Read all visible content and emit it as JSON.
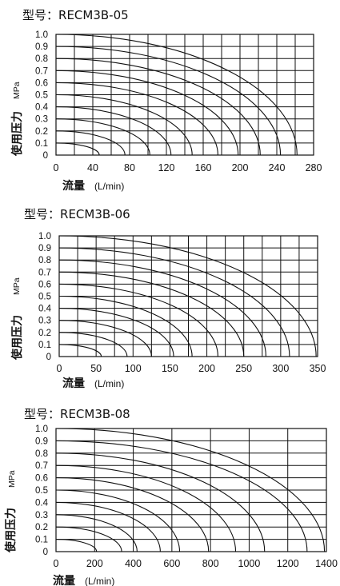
{
  "charts": [
    {
      "title_prefix": "型号",
      "title_sep": "：",
      "model": "RECM3B-05",
      "ylabel": "使用压力",
      "yunit": "MPa",
      "xlabel": "流量",
      "xunit": "(L/min)"
    },
    {
      "title_prefix": "型号",
      "title_sep": "：",
      "model": "RECM3B-06",
      "ylabel": "使用压力",
      "yunit": "MPa",
      "xlabel": "流量",
      "xunit": "(L/min)"
    },
    {
      "title_prefix": "型号",
      "title_sep": "：",
      "model": "RECM3B-08",
      "ylabel": "使用压力",
      "yunit": "MPa",
      "xlabel": "流量",
      "xunit": "(L/min)"
    }
  ],
  "chart_data": [
    {
      "type": "line",
      "title": "型号：RECM3B-05",
      "xlabel": "流量 (L/min)",
      "ylabel": "使用压力 MPa",
      "xlim": [
        0,
        280
      ],
      "ylim": [
        0,
        1.0
      ],
      "x_ticks": [
        0,
        40,
        80,
        120,
        160,
        200,
        240,
        280
      ],
      "x_grid_step": 20,
      "y_ticks": [
        0,
        0.1,
        0.2,
        0.3,
        0.4,
        0.5,
        0.6,
        0.7,
        0.8,
        0.9,
        1.0
      ],
      "y_tick_labels": [
        "0",
        "0.1",
        "0.2",
        "0.3",
        "0.4",
        "0.5",
        "0.6",
        "0.7",
        "0.8",
        "0.9",
        "1.0"
      ],
      "curves_set_pressure": [
        0.1,
        0.2,
        0.3,
        0.4,
        0.5,
        0.6,
        0.7,
        0.8,
        0.9,
        1.0
      ],
      "curves_max_flow": [
        47,
        75,
        102,
        125,
        148,
        176,
        198,
        222,
        244,
        262
      ]
    },
    {
      "type": "line",
      "title": "型号：RECM3B-06",
      "xlabel": "流量 (L/min)",
      "ylabel": "使用压力 MPa",
      "xlim": [
        0,
        350
      ],
      "ylim": [
        0,
        1.0
      ],
      "x_ticks": [
        0,
        50,
        100,
        150,
        200,
        250,
        300,
        350
      ],
      "x_grid_step": 25,
      "y_ticks": [
        0,
        0.1,
        0.2,
        0.3,
        0.4,
        0.5,
        0.6,
        0.7,
        0.8,
        0.9,
        1.0
      ],
      "y_tick_labels": [
        "0",
        "0.1",
        "0.2",
        "0.3",
        "0.4",
        "0.5",
        "0.6",
        "0.7",
        "0.8",
        "0.9",
        "1.0"
      ],
      "curves_set_pressure": [
        0.1,
        0.2,
        0.3,
        0.4,
        0.5,
        0.6,
        0.7,
        0.8,
        0.9,
        1.0
      ],
      "curves_max_flow": [
        57,
        92,
        125,
        155,
        180,
        215,
        250,
        280,
        312,
        348
      ]
    },
    {
      "type": "line",
      "title": "型号：RECM3B-08",
      "xlabel": "流量 (L/min)",
      "ylabel": "使用压力 MPa",
      "xlim": [
        0,
        1400
      ],
      "ylim": [
        0,
        1.0
      ],
      "x_ticks": [
        0,
        200,
        400,
        600,
        800,
        1000,
        1200,
        1400
      ],
      "x_grid_step": 200,
      "y_ticks": [
        0,
        0.1,
        0.2,
        0.3,
        0.4,
        0.5,
        0.6,
        0.7,
        0.8,
        0.9,
        1.0
      ],
      "y_tick_labels": [
        "0",
        "0.1",
        "0.2",
        "0.3",
        "0.4",
        "0.5",
        "0.6",
        "0.7",
        "0.8",
        "0.9",
        "1.0"
      ],
      "curves_set_pressure": [
        0.1,
        0.2,
        0.3,
        0.4,
        0.5,
        0.6,
        0.7,
        0.8,
        0.9,
        1.0
      ],
      "curves_max_flow": [
        210,
        340,
        420,
        540,
        640,
        790,
        930,
        1080,
        1300,
        1390
      ]
    }
  ]
}
